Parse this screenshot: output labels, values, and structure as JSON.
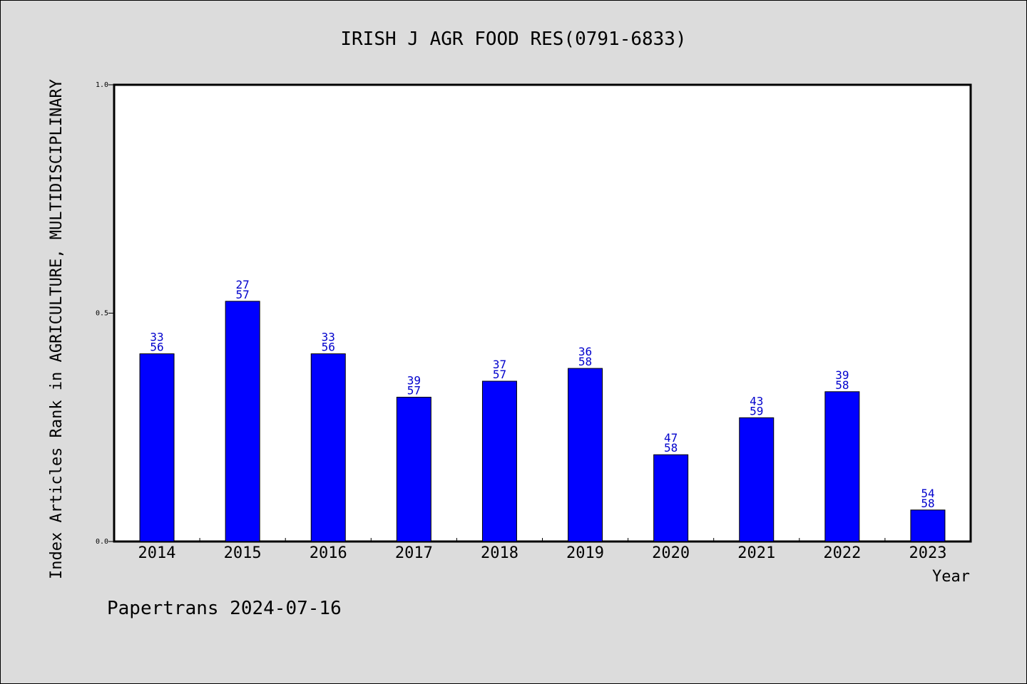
{
  "chart_data": {
    "type": "bar",
    "title": "IRISH J AGR FOOD RES(0791-6833)",
    "xlabel": "Year",
    "ylabel": "Index Articles Rank in AGRICULTURE, MULTIDISCIPLINARY",
    "ylim": [
      0,
      1
    ],
    "yticks": [
      "0.0",
      "0.5",
      "1.0"
    ],
    "categories": [
      "2014",
      "2015",
      "2016",
      "2017",
      "2018",
      "2019",
      "2020",
      "2021",
      "2022",
      "2023"
    ],
    "series": [
      {
        "values": [
          0.411,
          0.526,
          0.411,
          0.316,
          0.351,
          0.379,
          0.19,
          0.271,
          0.328,
          0.069
        ],
        "rank": [
          "33",
          "27",
          "33",
          "39",
          "37",
          "36",
          "47",
          "43",
          "39",
          "54"
        ],
        "total": [
          "56",
          "57",
          "56",
          "57",
          "57",
          "58",
          "58",
          "59",
          "58",
          "58"
        ]
      }
    ],
    "grid": false,
    "legend": "none",
    "colors": {
      "bar": "#0000ff",
      "bar_label": "#0000cc",
      "background": "#dcdcdc",
      "plot_background": "#ffffff"
    }
  },
  "footer": "Papertrans 2024-07-16"
}
